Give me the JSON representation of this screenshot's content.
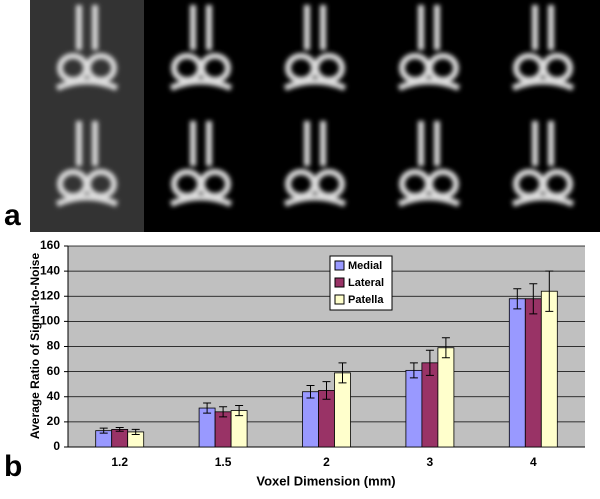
{
  "panel_a_label": "a",
  "panel_b_label": "b",
  "chart_data": {
    "type": "bar",
    "ylabel": "Average Ratio of Signal-to-Noise",
    "xlabel": "Voxel Dimension (mm)",
    "categories": [
      "1.2",
      "1.5",
      "2",
      "3",
      "4"
    ],
    "series": [
      {
        "name": "Medial",
        "color": "#9999ff",
        "values": [
          13,
          31,
          44,
          61,
          118
        ],
        "errors": [
          2,
          4,
          5,
          6,
          8
        ]
      },
      {
        "name": "Lateral",
        "color": "#993366",
        "values": [
          14,
          28,
          45,
          67,
          118
        ],
        "errors": [
          1.5,
          4,
          7,
          10,
          12
        ]
      },
      {
        "name": "Patella",
        "color": "#ffffcc",
        "values": [
          12,
          29,
          59,
          79,
          124
        ],
        "errors": [
          2,
          4,
          8,
          8,
          16
        ]
      }
    ],
    "ylim": [
      0,
      160
    ],
    "yticks": [
      0,
      20,
      40,
      60,
      80,
      100,
      120,
      140,
      160
    ],
    "grid": true,
    "legend": "upper-right"
  }
}
